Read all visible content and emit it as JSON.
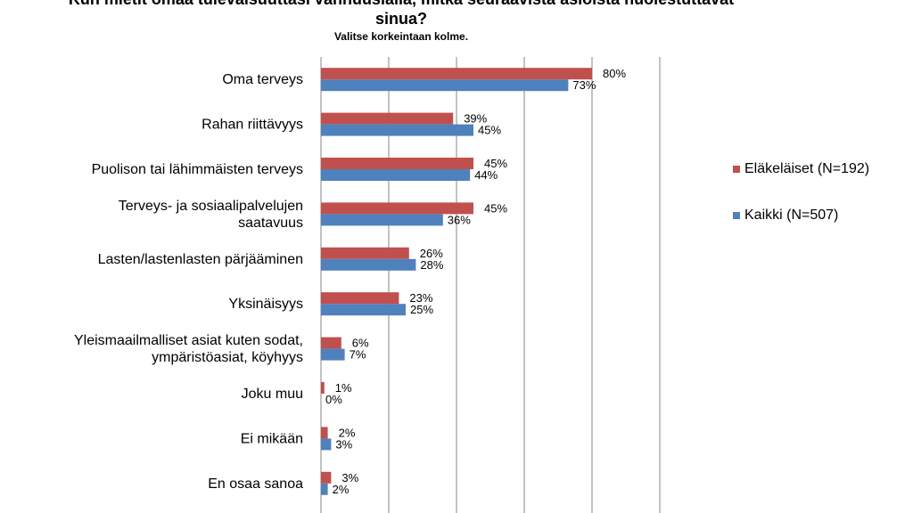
{
  "header": {
    "title": "Kun mietit omaa tulevaisuuttasi vanhuusiällä, mitkä seuraavista asioista huolestuttavat sinua?",
    "subtitle": "Valitse korkeintaan kolme."
  },
  "legend": {
    "items": [
      {
        "label": "Eläkeläiset (N=192)",
        "color": "#c0504d"
      },
      {
        "label": "Kaikki (N=507)",
        "color": "#4f81bd"
      }
    ]
  },
  "chart_data": {
    "type": "bar",
    "orientation": "horizontal",
    "title": "Kun mietit omaa tulevaisuuttasi vanhuusiällä, mitkä seuraavista asioista huolestuttavat sinua?",
    "subtitle": "Valitse korkeintaan kolme.",
    "categories": [
      [
        "Oma terveys"
      ],
      [
        "Rahan riittävyys"
      ],
      [
        "Puolison tai lähimmäisten terveys"
      ],
      [
        "Terveys- ja sosiaalipalvelujen",
        "saatavuus"
      ],
      [
        "Lasten/lastenlasten pärjääminen"
      ],
      [
        "Yksinäisyys"
      ],
      [
        "Yleismaailmalliset asiat kuten sodat,",
        "ympäristöasiat, köyhyys"
      ],
      [
        "Joku muu"
      ],
      [
        "Ei mikään"
      ],
      [
        "En osaa sanoa"
      ]
    ],
    "series": [
      {
        "name": "Eläkeläiset (N=192)",
        "color": "#c0504d",
        "values": [
          80,
          39,
          45,
          45,
          26,
          23,
          6,
          1,
          2,
          3
        ],
        "labels": [
          "80%",
          "39%",
          "45%",
          "45%",
          "26%",
          "23%",
          "6%",
          "1%",
          "2%",
          "3%"
        ]
      },
      {
        "name": "Kaikki (N=507)",
        "color": "#4f81bd",
        "values": [
          73,
          45,
          44,
          36,
          28,
          25,
          7,
          0,
          3,
          2
        ],
        "labels": [
          "73%",
          "45%",
          "44%",
          "36%",
          "28%",
          "25%",
          "7%",
          "0%",
          "3%",
          "2%"
        ]
      }
    ],
    "xlim": [
      0,
      100
    ],
    "grid": true,
    "legend_position": "right"
  }
}
